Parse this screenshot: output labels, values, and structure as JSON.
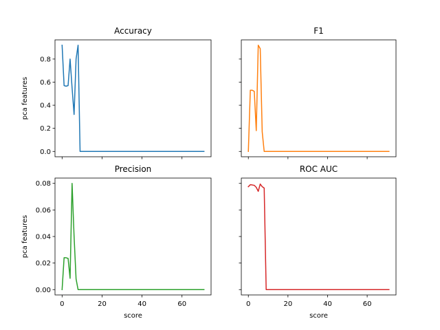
{
  "chart_data": [
    {
      "type": "line",
      "title": "Accuracy",
      "xlabel": "",
      "ylabel": "pca features",
      "xlim": [
        -3.55,
        74.55
      ],
      "ylim": [
        -0.046,
        0.966
      ],
      "xticks": [
        0,
        20,
        40,
        60
      ],
      "yticks": [
        0.0,
        0.2,
        0.4,
        0.6,
        0.8
      ],
      "ytick_labels": [
        "0.0",
        "0.2",
        "0.4",
        "0.6",
        "0.8"
      ],
      "show_xtick_labels": false,
      "show_ytick_labels": true,
      "color": "#1f77b4",
      "x": [
        0,
        1,
        2,
        3,
        4,
        5,
        6,
        7,
        8,
        9,
        71
      ],
      "y": [
        0.92,
        0.57,
        0.565,
        0.57,
        0.8,
        0.55,
        0.32,
        0.8,
        0.92,
        0.0,
        0.0
      ]
    },
    {
      "type": "line",
      "title": "F1",
      "xlabel": "",
      "ylabel": "",
      "xlim": [
        -3.55,
        74.55
      ],
      "ylim": [
        -0.046,
        0.966
      ],
      "xticks": [
        0,
        20,
        40,
        60
      ],
      "yticks": [
        0.0,
        0.2,
        0.4,
        0.6,
        0.8
      ],
      "ytick_labels": [
        "0.0",
        "0.2",
        "0.4",
        "0.6",
        "0.8"
      ],
      "show_xtick_labels": false,
      "show_ytick_labels": false,
      "color": "#ff7f0e",
      "x": [
        0,
        1,
        2,
        3,
        4,
        5,
        6,
        7,
        8,
        71
      ],
      "y": [
        0.0,
        0.53,
        0.53,
        0.52,
        0.18,
        0.92,
        0.89,
        0.17,
        0.0,
        0.0
      ]
    },
    {
      "type": "line",
      "title": "Precision",
      "xlabel": "score",
      "ylabel": "pca features",
      "xlim": [
        -3.55,
        74.55
      ],
      "ylim": [
        -0.004,
        0.084
      ],
      "xticks": [
        0,
        20,
        40,
        60
      ],
      "xtick_labels": [
        "0",
        "20",
        "40",
        "60"
      ],
      "yticks": [
        0.0,
        0.02,
        0.04,
        0.06,
        0.08
      ],
      "ytick_labels": [
        "0.00",
        "0.02",
        "0.04",
        "0.06",
        "0.08"
      ],
      "show_xtick_labels": true,
      "show_ytick_labels": true,
      "color": "#2ca02c",
      "x": [
        0,
        1,
        2,
        3,
        4,
        5,
        6,
        7,
        8,
        71
      ],
      "y": [
        0.0,
        0.024,
        0.024,
        0.0235,
        0.0085,
        0.08,
        0.04,
        0.008,
        0.0,
        0.0
      ]
    },
    {
      "type": "line",
      "title": "ROC AUC",
      "xlabel": "score",
      "ylabel": "",
      "xlim": [
        -3.55,
        74.55
      ],
      "ylim": [
        -0.004,
        0.084
      ],
      "xticks": [
        0,
        20,
        40,
        60
      ],
      "xtick_labels": [
        "0",
        "20",
        "40",
        "60"
      ],
      "yticks": [
        0.0,
        0.02,
        0.04,
        0.06,
        0.08
      ],
      "ytick_labels": [
        "0.00",
        "0.02",
        "0.04",
        "0.06",
        "0.08"
      ],
      "show_xtick_labels": true,
      "show_ytick_labels": false,
      "color": "#d62728",
      "x": [
        0,
        1,
        2,
        3,
        4,
        5,
        6,
        7,
        8,
        9,
        71
      ],
      "y": [
        0.0775,
        0.079,
        0.0788,
        0.0785,
        0.077,
        0.074,
        0.0795,
        0.0775,
        0.0765,
        0.0,
        0.0
      ]
    }
  ]
}
